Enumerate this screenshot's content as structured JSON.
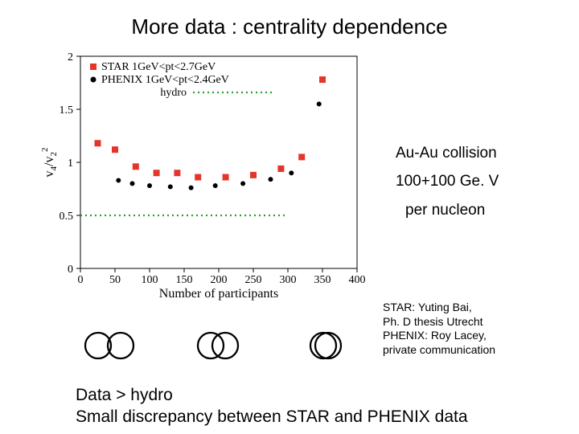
{
  "title": "More data : centrality dependence",
  "chart": {
    "type": "scatter",
    "background_color": "#ffffff",
    "axes_color": "#000000",
    "xlabel": "Number of participants",
    "ylabel": "v₄ / v₂²",
    "xlabel_fontsize": 16,
    "ylabel_fontsize": 16,
    "tick_fontsize": 14,
    "xlim": [
      0,
      400
    ],
    "ylim": [
      0,
      2
    ],
    "xticks": [
      0,
      50,
      100,
      150,
      200,
      250,
      300,
      350,
      400
    ],
    "yticks": [
      0,
      0.5,
      1,
      1.5,
      2
    ],
    "legend": {
      "items": [
        {
          "label": "STAR  1GeV<pt<2.7GeV",
          "marker": "square",
          "color": "#e4352b"
        },
        {
          "label": "PHENIX 1GeV<pt<2.4GeV",
          "marker": "circle",
          "color": "#000000"
        },
        {
          "label": "hydro",
          "marker": "line",
          "color": "#2aa02a",
          "dash": "dotted"
        }
      ],
      "fontsize": 14
    },
    "hydro_line_y": 0.5,
    "series": {
      "star": {
        "marker": "square",
        "color": "#e4352b",
        "size": 4,
        "points": [
          [
            25,
            1.18
          ],
          [
            50,
            1.12
          ],
          [
            80,
            0.96
          ],
          [
            110,
            0.9
          ],
          [
            140,
            0.9
          ],
          [
            170,
            0.86
          ],
          [
            210,
            0.86
          ],
          [
            250,
            0.88
          ],
          [
            290,
            0.94
          ],
          [
            320,
            1.05
          ],
          [
            350,
            1.78
          ]
        ]
      },
      "phenix": {
        "marker": "circle",
        "color": "#000000",
        "size": 3,
        "points": [
          [
            55,
            0.83
          ],
          [
            75,
            0.8
          ],
          [
            100,
            0.78
          ],
          [
            130,
            0.77
          ],
          [
            160,
            0.76
          ],
          [
            195,
            0.78
          ],
          [
            235,
            0.8
          ],
          [
            275,
            0.84
          ],
          [
            305,
            0.9
          ],
          [
            345,
            1.55
          ]
        ]
      }
    }
  },
  "annotations": {
    "line1": "Au-Au collision",
    "line2": "100+100 Ge. V",
    "line3": "per nucleon",
    "fontsize": 19
  },
  "credits": {
    "text": "STAR: Yuting Bai,\nPh. D thesis Utrecht\nPHENIX: Roy Lacey,\nprivate communication",
    "fontsize": 14
  },
  "overlap_diagrams": {
    "pairs": [
      {
        "cx1": 20,
        "cx2": 48,
        "r": 16
      },
      {
        "cx1": 160,
        "cx2": 178,
        "r": 16
      },
      {
        "cx1": 300,
        "cx2": 306,
        "r": 16
      }
    ],
    "stroke": "#000000",
    "stroke_width": 2.3,
    "fill": "none"
  },
  "conclusion": {
    "line1": "Data > hydro",
    "line2": "Small discrepancy between STAR and PHENIX data",
    "fontsize": 21
  }
}
